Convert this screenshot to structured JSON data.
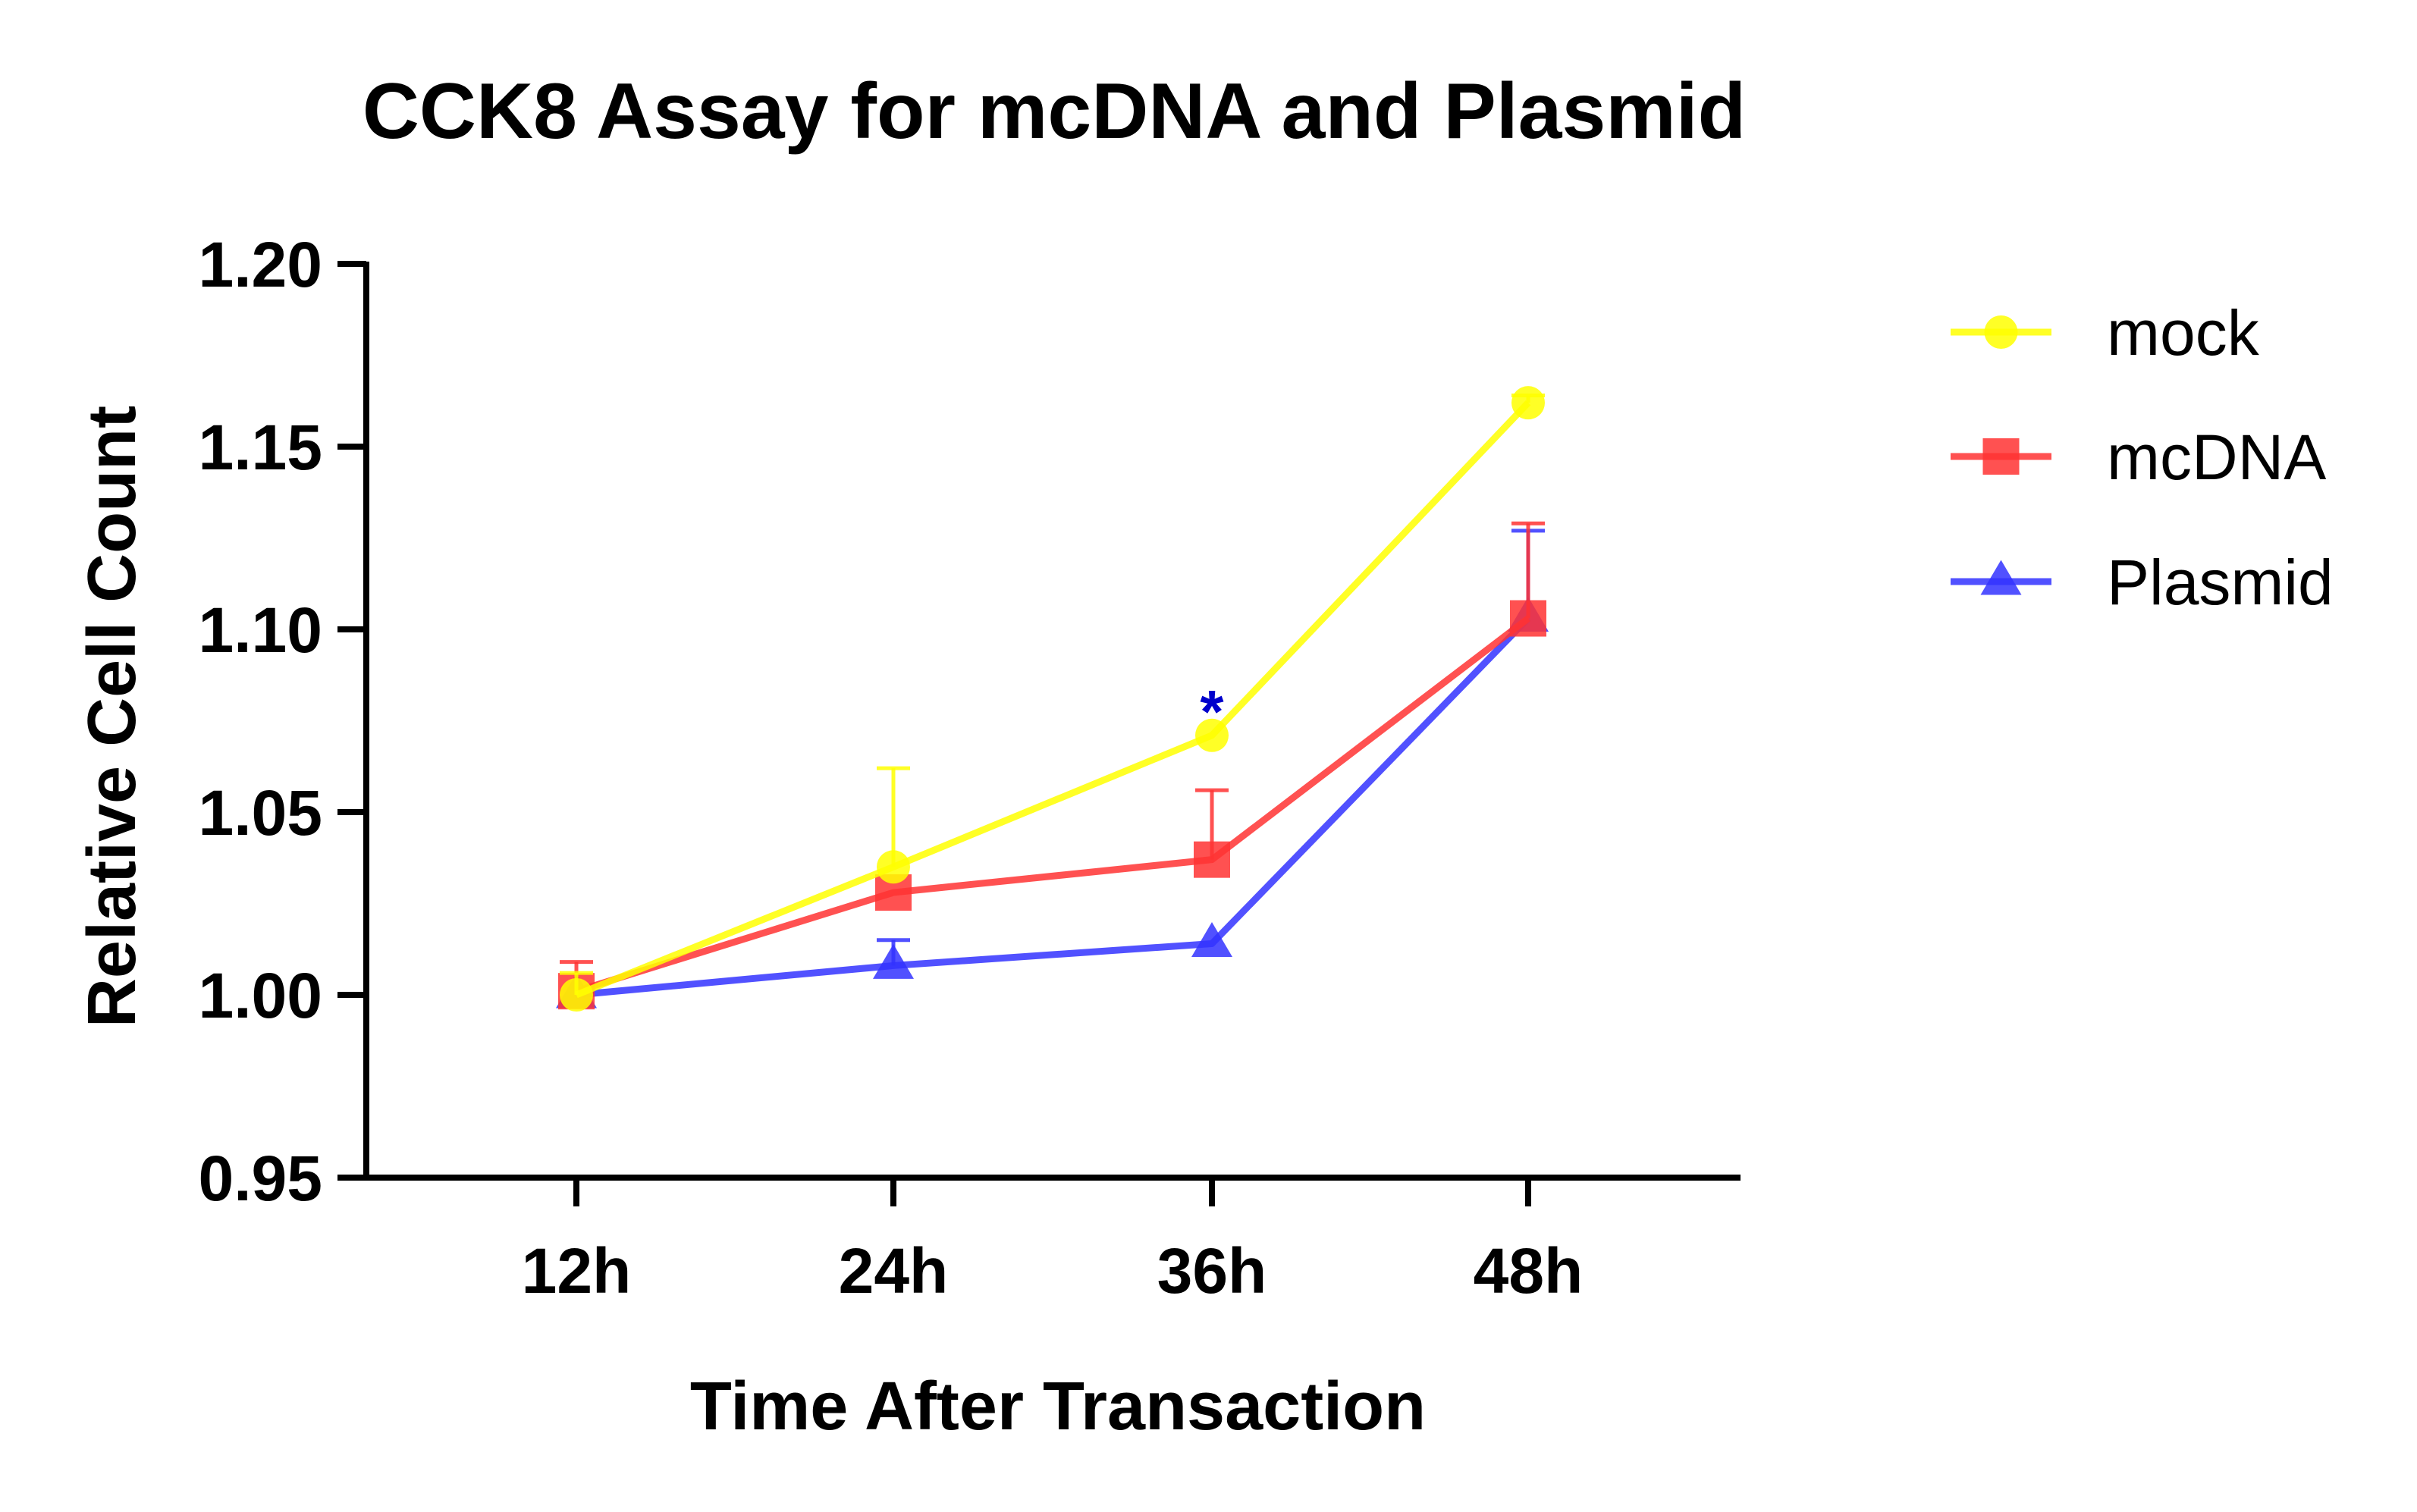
{
  "chart_data": {
    "type": "line",
    "title": "CCK8 Assay for mcDNA and Plasmid",
    "xlabel": "Time After Transaction",
    "ylabel": "Relative Cell Count",
    "categories": [
      "12h",
      "24h",
      "36h",
      "48h"
    ],
    "ylim": [
      0.95,
      1.2
    ],
    "yticks": [
      "0.95",
      "1.00",
      "1.05",
      "1.10",
      "1.15",
      "1.20"
    ],
    "grid": false,
    "legend_position": "right",
    "series": [
      {
        "name": "mock",
        "color": "#ffff00",
        "marker": "circle",
        "values": [
          1.0,
          1.035,
          1.071,
          1.162
        ],
        "error": [
          0.006,
          0.027,
          0.0,
          0.002
        ]
      },
      {
        "name": "mcDNA",
        "color": "#ff3333",
        "marker": "square",
        "values": [
          1.001,
          1.028,
          1.037,
          1.103
        ],
        "error": [
          0.008,
          0.0,
          0.019,
          0.026
        ]
      },
      {
        "name": "Plasmid",
        "color": "#3333ff",
        "marker": "triangle",
        "values": [
          1.0,
          1.008,
          1.014,
          1.103
        ],
        "error": [
          0.0,
          0.007,
          0.0,
          0.024
        ]
      }
    ],
    "annotations": [
      {
        "text": "*",
        "category": "36h",
        "y": 1.078,
        "color": "#0000cc"
      }
    ]
  }
}
